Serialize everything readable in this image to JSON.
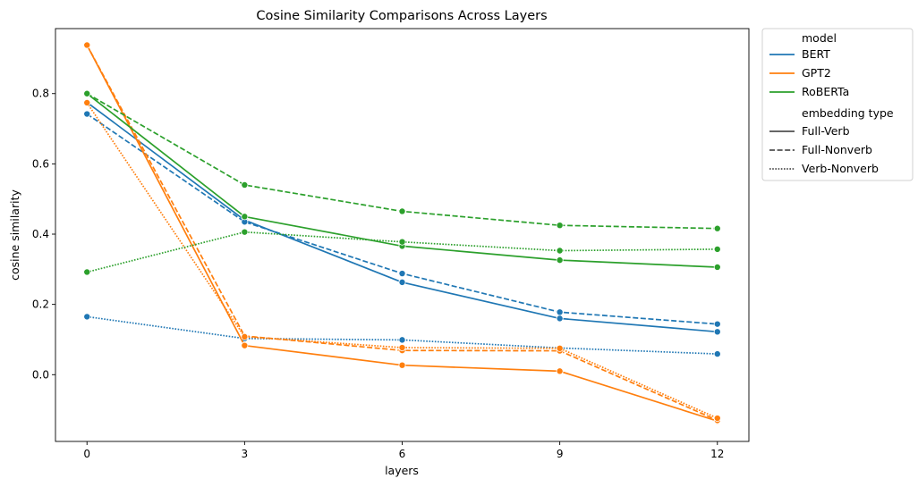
{
  "chart_data": {
    "type": "line",
    "title": "Cosine Similarity Comparisons Across Layers",
    "xlabel": "layers",
    "ylabel": "cosine similarity",
    "x": [
      0,
      3,
      6,
      9,
      12
    ],
    "xticks": [
      "0",
      "3",
      "6",
      "9",
      "12"
    ],
    "yticks": [
      "0.0",
      "0.2",
      "0.4",
      "0.6",
      "0.8"
    ],
    "ytick_values": [
      0.0,
      0.2,
      0.4,
      0.6,
      0.8
    ],
    "xlim": [
      -0.6,
      12.6
    ],
    "ylim": [
      -0.19,
      0.985
    ],
    "grid": false,
    "legend": {
      "placement": "outside-top-right",
      "hue_title": "model",
      "style_title": "embedding type",
      "models": [
        {
          "name": "BERT",
          "color": "#1f77b4"
        },
        {
          "name": "GPT2",
          "color": "#ff7f0e"
        },
        {
          "name": "RoBERTa",
          "color": "#2ca02c"
        }
      ],
      "styles": [
        {
          "name": "Full-Verb",
          "dash": "solid"
        },
        {
          "name": "Full-Nonverb",
          "dash": "dashed"
        },
        {
          "name": "Verb-Nonverb",
          "dash": "dotted"
        }
      ]
    },
    "series": [
      {
        "model": "BERT",
        "embedding": "Full-Verb",
        "color": "#1f77b4",
        "dash": "solid",
        "values": [
          0.775,
          0.44,
          0.263,
          0.16,
          0.122
        ]
      },
      {
        "model": "BERT",
        "embedding": "Full-Nonverb",
        "color": "#1f77b4",
        "dash": "dashed",
        "values": [
          0.742,
          0.435,
          0.288,
          0.178,
          0.144
        ]
      },
      {
        "model": "BERT",
        "embedding": "Verb-Nonverb",
        "color": "#1f77b4",
        "dash": "dotted",
        "values": [
          0.165,
          0.103,
          0.099,
          0.076,
          0.059
        ]
      },
      {
        "model": "GPT2",
        "embedding": "Full-Verb",
        "color": "#ff7f0e",
        "dash": "solid",
        "values": [
          0.938,
          0.083,
          0.027,
          0.01,
          -0.132
        ]
      },
      {
        "model": "GPT2",
        "embedding": "Full-Nonverb",
        "color": "#ff7f0e",
        "dash": "dashed",
        "values": [
          0.938,
          0.11,
          0.069,
          0.068,
          -0.13
        ]
      },
      {
        "model": "GPT2",
        "embedding": "Verb-Nonverb",
        "color": "#ff7f0e",
        "dash": "dotted",
        "values": [
          0.774,
          0.108,
          0.077,
          0.075,
          -0.124
        ]
      },
      {
        "model": "RoBERTa",
        "embedding": "Full-Verb",
        "color": "#2ca02c",
        "dash": "solid",
        "values": [
          0.8,
          0.45,
          0.366,
          0.326,
          0.306
        ]
      },
      {
        "model": "RoBERTa",
        "embedding": "Full-Nonverb",
        "color": "#2ca02c",
        "dash": "dashed",
        "values": [
          0.8,
          0.54,
          0.465,
          0.425,
          0.416
        ]
      },
      {
        "model": "RoBERTa",
        "embedding": "Verb-Nonverb",
        "color": "#2ca02c",
        "dash": "dotted",
        "values": [
          0.292,
          0.406,
          0.378,
          0.353,
          0.357
        ]
      }
    ]
  }
}
